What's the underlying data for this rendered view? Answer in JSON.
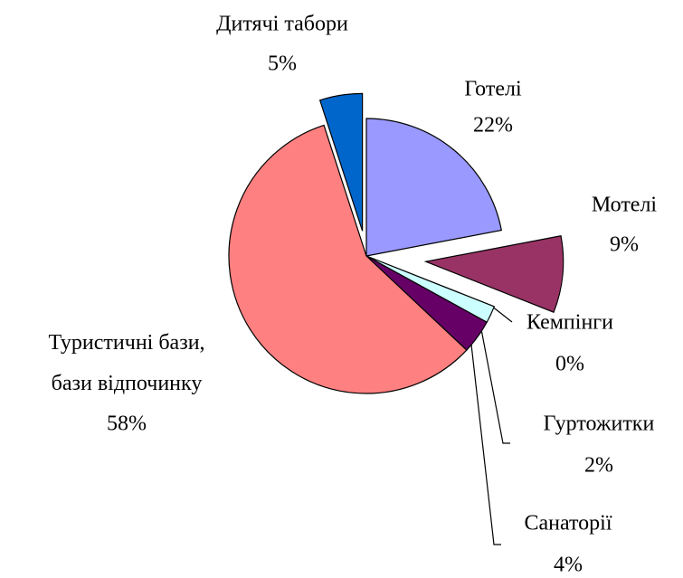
{
  "chart_data": {
    "type": "pie",
    "categories": [
      "Готелі",
      "Мотелі",
      "Кемпінги",
      "Гуртожитки",
      "Санаторії",
      "Туристичні бази, бази відпочинку",
      "Дитячі табори"
    ],
    "values": [
      22,
      9,
      0,
      2,
      4,
      58,
      5
    ],
    "value_labels": [
      "22%",
      "9%",
      "0%",
      "2%",
      "4%",
      "58%",
      "5%"
    ],
    "colors": [
      "#9999ff",
      "#993366",
      "#ffffcc",
      "#ccffff",
      "#660066",
      "#ff8080",
      "#0066cc"
    ]
  }
}
